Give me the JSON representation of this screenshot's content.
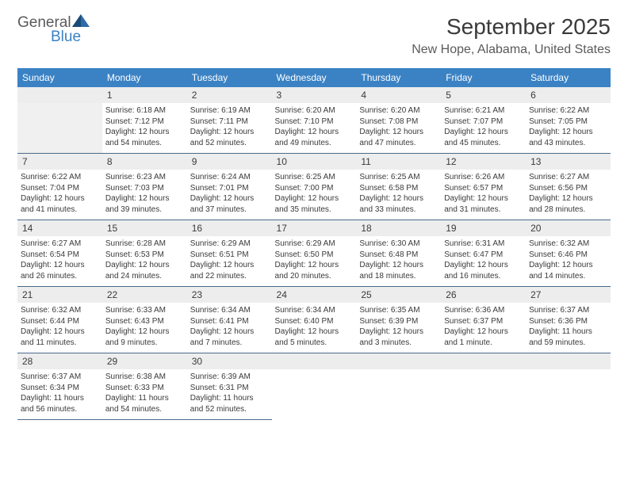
{
  "logo": {
    "text_general": "General",
    "text_blue": "Blue"
  },
  "title": "September 2025",
  "location": "New Hope, Alabama, United States",
  "colors": {
    "header_bg": "#3b82c4",
    "header_text": "#ffffff",
    "day_num_bg": "#ededed",
    "border": "#4a6a8a",
    "text": "#3a3a3a"
  },
  "day_names": [
    "Sunday",
    "Monday",
    "Tuesday",
    "Wednesday",
    "Thursday",
    "Friday",
    "Saturday"
  ],
  "weeks": [
    {
      "numbers": [
        "",
        "1",
        "2",
        "3",
        "4",
        "5",
        "6"
      ],
      "cells": [
        {
          "empty": true
        },
        {
          "sunrise": "Sunrise: 6:18 AM",
          "sunset": "Sunset: 7:12 PM",
          "daylight1": "Daylight: 12 hours",
          "daylight2": "and 54 minutes."
        },
        {
          "sunrise": "Sunrise: 6:19 AM",
          "sunset": "Sunset: 7:11 PM",
          "daylight1": "Daylight: 12 hours",
          "daylight2": "and 52 minutes."
        },
        {
          "sunrise": "Sunrise: 6:20 AM",
          "sunset": "Sunset: 7:10 PM",
          "daylight1": "Daylight: 12 hours",
          "daylight2": "and 49 minutes."
        },
        {
          "sunrise": "Sunrise: 6:20 AM",
          "sunset": "Sunset: 7:08 PM",
          "daylight1": "Daylight: 12 hours",
          "daylight2": "and 47 minutes."
        },
        {
          "sunrise": "Sunrise: 6:21 AM",
          "sunset": "Sunset: 7:07 PM",
          "daylight1": "Daylight: 12 hours",
          "daylight2": "and 45 minutes."
        },
        {
          "sunrise": "Sunrise: 6:22 AM",
          "sunset": "Sunset: 7:05 PM",
          "daylight1": "Daylight: 12 hours",
          "daylight2": "and 43 minutes."
        }
      ]
    },
    {
      "numbers": [
        "7",
        "8",
        "9",
        "10",
        "11",
        "12",
        "13"
      ],
      "cells": [
        {
          "sunrise": "Sunrise: 6:22 AM",
          "sunset": "Sunset: 7:04 PM",
          "daylight1": "Daylight: 12 hours",
          "daylight2": "and 41 minutes."
        },
        {
          "sunrise": "Sunrise: 6:23 AM",
          "sunset": "Sunset: 7:03 PM",
          "daylight1": "Daylight: 12 hours",
          "daylight2": "and 39 minutes."
        },
        {
          "sunrise": "Sunrise: 6:24 AM",
          "sunset": "Sunset: 7:01 PM",
          "daylight1": "Daylight: 12 hours",
          "daylight2": "and 37 minutes."
        },
        {
          "sunrise": "Sunrise: 6:25 AM",
          "sunset": "Sunset: 7:00 PM",
          "daylight1": "Daylight: 12 hours",
          "daylight2": "and 35 minutes."
        },
        {
          "sunrise": "Sunrise: 6:25 AM",
          "sunset": "Sunset: 6:58 PM",
          "daylight1": "Daylight: 12 hours",
          "daylight2": "and 33 minutes."
        },
        {
          "sunrise": "Sunrise: 6:26 AM",
          "sunset": "Sunset: 6:57 PM",
          "daylight1": "Daylight: 12 hours",
          "daylight2": "and 31 minutes."
        },
        {
          "sunrise": "Sunrise: 6:27 AM",
          "sunset": "Sunset: 6:56 PM",
          "daylight1": "Daylight: 12 hours",
          "daylight2": "and 28 minutes."
        }
      ]
    },
    {
      "numbers": [
        "14",
        "15",
        "16",
        "17",
        "18",
        "19",
        "20"
      ],
      "cells": [
        {
          "sunrise": "Sunrise: 6:27 AM",
          "sunset": "Sunset: 6:54 PM",
          "daylight1": "Daylight: 12 hours",
          "daylight2": "and 26 minutes."
        },
        {
          "sunrise": "Sunrise: 6:28 AM",
          "sunset": "Sunset: 6:53 PM",
          "daylight1": "Daylight: 12 hours",
          "daylight2": "and 24 minutes."
        },
        {
          "sunrise": "Sunrise: 6:29 AM",
          "sunset": "Sunset: 6:51 PM",
          "daylight1": "Daylight: 12 hours",
          "daylight2": "and 22 minutes."
        },
        {
          "sunrise": "Sunrise: 6:29 AM",
          "sunset": "Sunset: 6:50 PM",
          "daylight1": "Daylight: 12 hours",
          "daylight2": "and 20 minutes."
        },
        {
          "sunrise": "Sunrise: 6:30 AM",
          "sunset": "Sunset: 6:48 PM",
          "daylight1": "Daylight: 12 hours",
          "daylight2": "and 18 minutes."
        },
        {
          "sunrise": "Sunrise: 6:31 AM",
          "sunset": "Sunset: 6:47 PM",
          "daylight1": "Daylight: 12 hours",
          "daylight2": "and 16 minutes."
        },
        {
          "sunrise": "Sunrise: 6:32 AM",
          "sunset": "Sunset: 6:46 PM",
          "daylight1": "Daylight: 12 hours",
          "daylight2": "and 14 minutes."
        }
      ]
    },
    {
      "numbers": [
        "21",
        "22",
        "23",
        "24",
        "25",
        "26",
        "27"
      ],
      "cells": [
        {
          "sunrise": "Sunrise: 6:32 AM",
          "sunset": "Sunset: 6:44 PM",
          "daylight1": "Daylight: 12 hours",
          "daylight2": "and 11 minutes."
        },
        {
          "sunrise": "Sunrise: 6:33 AM",
          "sunset": "Sunset: 6:43 PM",
          "daylight1": "Daylight: 12 hours",
          "daylight2": "and 9 minutes."
        },
        {
          "sunrise": "Sunrise: 6:34 AM",
          "sunset": "Sunset: 6:41 PM",
          "daylight1": "Daylight: 12 hours",
          "daylight2": "and 7 minutes."
        },
        {
          "sunrise": "Sunrise: 6:34 AM",
          "sunset": "Sunset: 6:40 PM",
          "daylight1": "Daylight: 12 hours",
          "daylight2": "and 5 minutes."
        },
        {
          "sunrise": "Sunrise: 6:35 AM",
          "sunset": "Sunset: 6:39 PM",
          "daylight1": "Daylight: 12 hours",
          "daylight2": "and 3 minutes."
        },
        {
          "sunrise": "Sunrise: 6:36 AM",
          "sunset": "Sunset: 6:37 PM",
          "daylight1": "Daylight: 12 hours",
          "daylight2": "and 1 minute."
        },
        {
          "sunrise": "Sunrise: 6:37 AM",
          "sunset": "Sunset: 6:36 PM",
          "daylight1": "Daylight: 11 hours",
          "daylight2": "and 59 minutes."
        }
      ]
    },
    {
      "numbers": [
        "28",
        "29",
        "30",
        "",
        "",
        "",
        ""
      ],
      "cells": [
        {
          "sunrise": "Sunrise: 6:37 AM",
          "sunset": "Sunset: 6:34 PM",
          "daylight1": "Daylight: 11 hours",
          "daylight2": "and 56 minutes."
        },
        {
          "sunrise": "Sunrise: 6:38 AM",
          "sunset": "Sunset: 6:33 PM",
          "daylight1": "Daylight: 11 hours",
          "daylight2": "and 54 minutes."
        },
        {
          "sunrise": "Sunrise: 6:39 AM",
          "sunset": "Sunset: 6:31 PM",
          "daylight1": "Daylight: 11 hours",
          "daylight2": "and 52 minutes."
        },
        {
          "blank": true
        },
        {
          "blank": true
        },
        {
          "blank": true
        },
        {
          "blank": true
        }
      ]
    }
  ]
}
